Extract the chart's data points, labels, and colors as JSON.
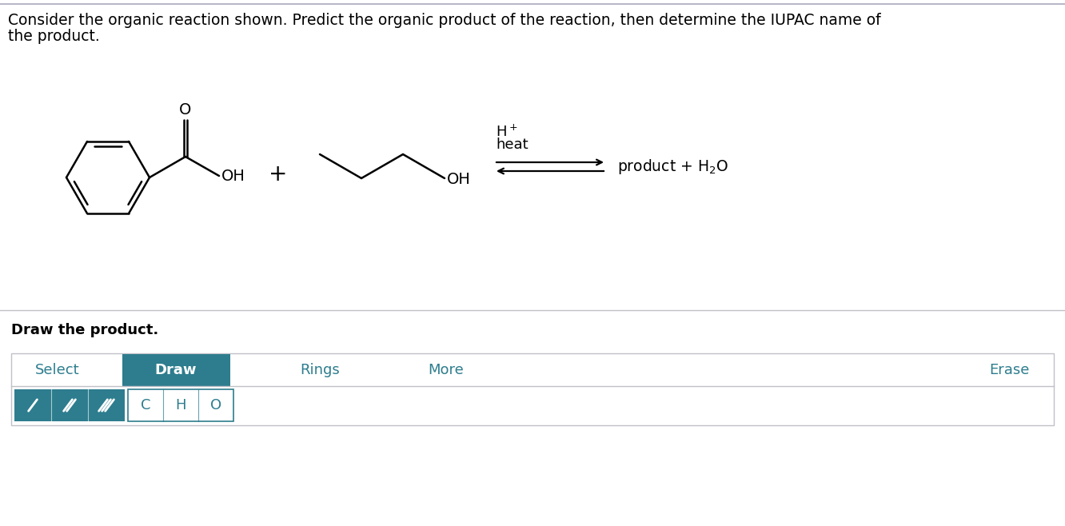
{
  "bg_color": "#ffffff",
  "top_border_color": "#b8b8c8",
  "title_line1": "Consider the organic reaction shown. Predict the organic product of the reaction, then determine the IUPAC name of",
  "title_line2": "the product.",
  "title_fontsize": 13.5,
  "draw_section_label": "Draw the product.",
  "draw_section_label_fontsize": 13,
  "toolbar_items": [
    "Select",
    "Draw",
    "Rings",
    "More",
    "Erase"
  ],
  "toolbar_active": "Draw",
  "toolbar_active_color": "#2d7d8e",
  "toolbar_inactive_color": "#2d7d8e",
  "toolbar_text_color_active": "#ffffff",
  "toolbar_text_color_inactive": "#2d7d8e",
  "bond_box_color": "#2d7d8e",
  "atom_box_border_color": "#2d7d8e",
  "atom_labels": [
    "C",
    "H",
    "O"
  ],
  "chem_line_color": "#000000",
  "section_divider_color": "#c0c0c8"
}
